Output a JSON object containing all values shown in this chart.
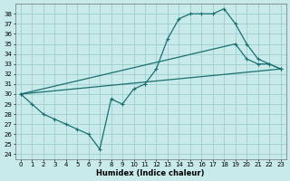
{
  "xlabel": "Humidex (Indice chaleur)",
  "bg_color": "#c8eaea",
  "line_color": "#1a7070",
  "grid_color": "#9ecece",
  "xlim": [
    -0.5,
    23.5
  ],
  "ylim": [
    23.5,
    39.0
  ],
  "xticks": [
    0,
    1,
    2,
    3,
    4,
    5,
    6,
    7,
    8,
    9,
    10,
    11,
    12,
    13,
    14,
    15,
    16,
    17,
    18,
    19,
    20,
    21,
    22,
    23
  ],
  "yticks": [
    24,
    25,
    26,
    27,
    28,
    29,
    30,
    31,
    32,
    33,
    34,
    35,
    36,
    37,
    38
  ],
  "line1_x": [
    0,
    1,
    2,
    3,
    4,
    5,
    6,
    7,
    8,
    9,
    10,
    11,
    12,
    13,
    14,
    15,
    16,
    17,
    18,
    19,
    20,
    21,
    22,
    23
  ],
  "line1_y": [
    30,
    29,
    28,
    27.5,
    27,
    26.5,
    26,
    24.5,
    29.5,
    29,
    30.5,
    31,
    32.5,
    35.5,
    37.5,
    38,
    38,
    38,
    38.5,
    37,
    35,
    33.5,
    33,
    32.5
  ],
  "line2_x": [
    0,
    19,
    20,
    21,
    22,
    23
  ],
  "line2_y": [
    30,
    35,
    33.5,
    33,
    33,
    32.5
  ],
  "line3_x": [
    0,
    23
  ],
  "line3_y": [
    30,
    32.5
  ]
}
